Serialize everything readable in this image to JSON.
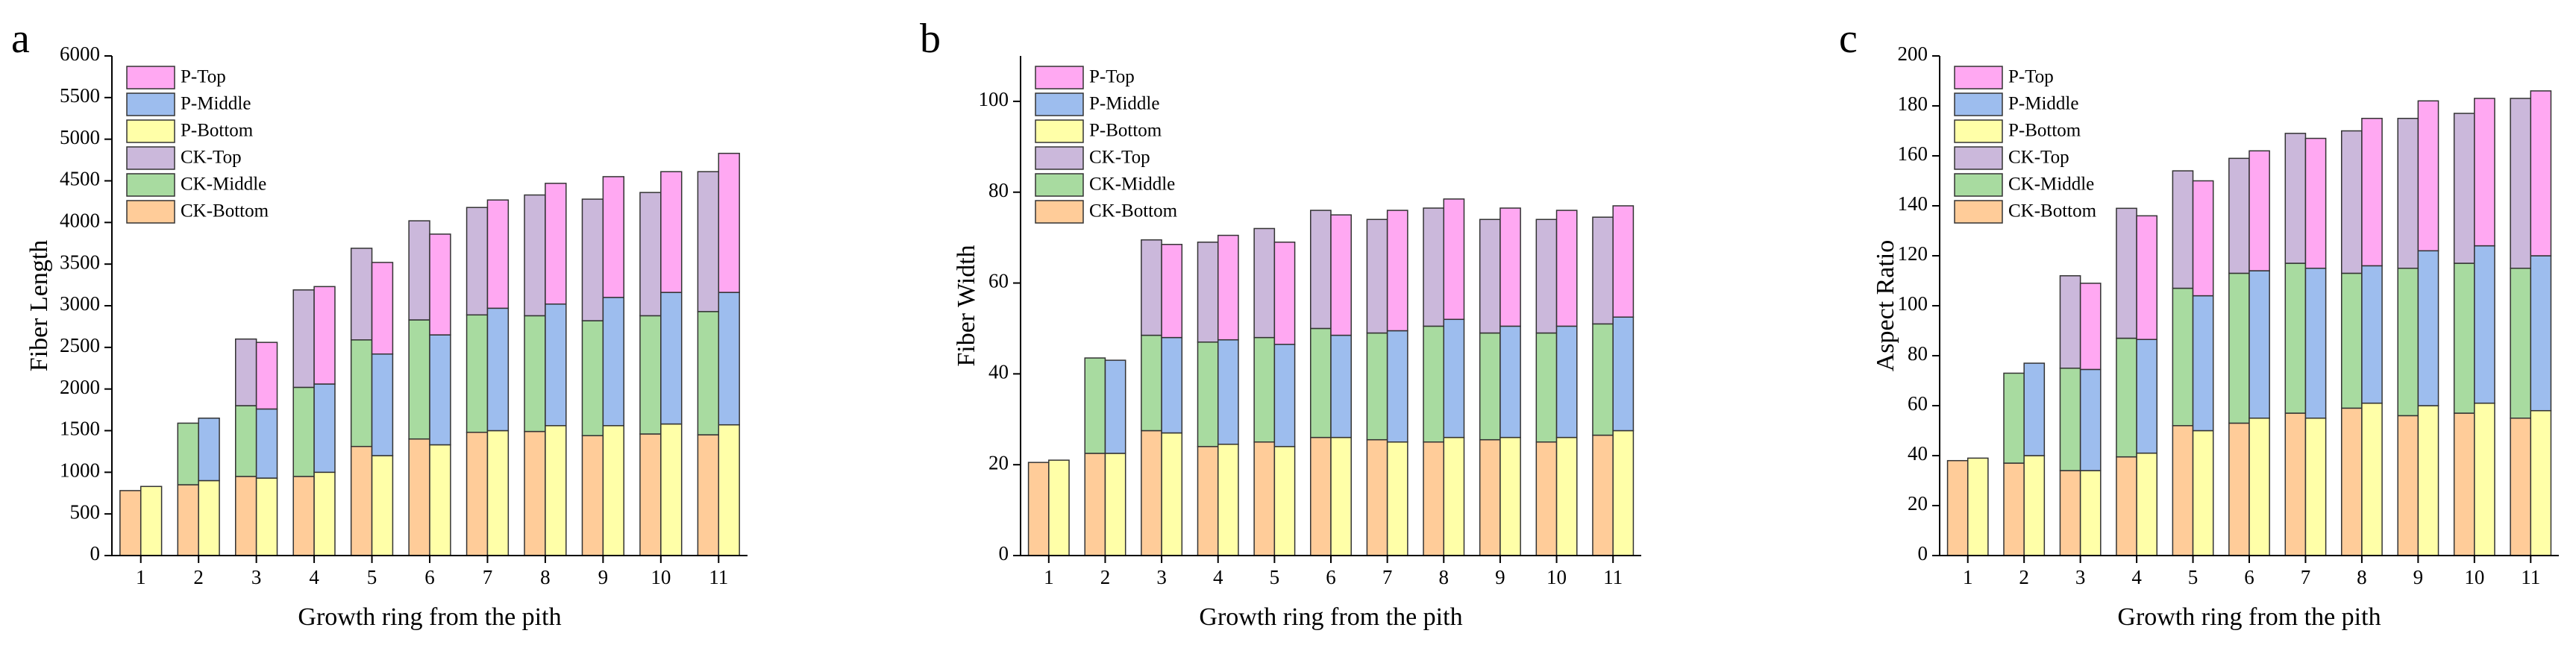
{
  "chart_data": [
    {
      "type": "stacked_bar",
      "label": "a",
      "xlabel": "Growth ring from the pith",
      "ylabel": "Fiber Length",
      "categories": [
        "1",
        "2",
        "3",
        "4",
        "5",
        "6",
        "7",
        "8",
        "9",
        "10",
        "11"
      ],
      "ylim": [
        0,
        6000
      ],
      "yticks": [
        0,
        500,
        1000,
        1500,
        2000,
        2500,
        3000,
        3500,
        4000,
        4500,
        5000,
        5500,
        6000
      ],
      "series": [
        {
          "name": "CK-Bottom",
          "stack": "CK",
          "color": "#FFCC99",
          "values": [
            780,
            850,
            950,
            950,
            1310,
            1400,
            1480,
            1490,
            1440,
            1460,
            1450
          ]
        },
        {
          "name": "CK-Middle",
          "stack": "CK",
          "color": "#A8DBA0",
          "values": [
            null,
            740,
            850,
            1070,
            1280,
            1430,
            1410,
            1390,
            1380,
            1420,
            1480
          ]
        },
        {
          "name": "CK-Top",
          "stack": "CK",
          "color": "#CBB8DB",
          "values": [
            null,
            null,
            800,
            1170,
            1100,
            1190,
            1290,
            1450,
            1460,
            1480,
            1680
          ]
        },
        {
          "name": "P-Bottom",
          "stack": "P",
          "color": "#FFFFA8",
          "values": [
            830,
            900,
            930,
            1000,
            1200,
            1330,
            1500,
            1560,
            1560,
            1580,
            1570
          ]
        },
        {
          "name": "P-Middle",
          "stack": "P",
          "color": "#9DBDEE",
          "values": [
            null,
            750,
            830,
            1060,
            1220,
            1320,
            1470,
            1460,
            1540,
            1580,
            1590
          ]
        },
        {
          "name": "P-Top",
          "stack": "P",
          "color": "#FFA8F2",
          "values": [
            null,
            null,
            800,
            1170,
            1100,
            1210,
            1300,
            1450,
            1450,
            1450,
            1670
          ]
        }
      ]
    },
    {
      "type": "stacked_bar",
      "label": "b",
      "xlabel": "Growth ring from the pith",
      "ylabel": "Fiber Width",
      "categories": [
        "1",
        "2",
        "3",
        "4",
        "5",
        "6",
        "7",
        "8",
        "9",
        "10",
        "11"
      ],
      "ylim": [
        0,
        110
      ],
      "yticks": [
        0,
        20,
        40,
        60,
        80,
        100
      ],
      "series": [
        {
          "name": "CK-Bottom",
          "stack": "CK",
          "color": "#FFCC99",
          "values": [
            20.5,
            22.5,
            27.5,
            24,
            25,
            26,
            25.5,
            25,
            25.5,
            25,
            26.5
          ]
        },
        {
          "name": "CK-Middle",
          "stack": "CK",
          "color": "#A8DBA0",
          "values": [
            null,
            21,
            21,
            23,
            23,
            24,
            23.5,
            25.5,
            23.5,
            24,
            24.5
          ]
        },
        {
          "name": "CK-Top",
          "stack": "CK",
          "color": "#CBB8DB",
          "values": [
            null,
            null,
            21,
            22,
            24,
            26,
            25,
            26,
            25,
            25,
            23.5
          ]
        },
        {
          "name": "P-Bottom",
          "stack": "P",
          "color": "#FFFFA8",
          "values": [
            21,
            22.5,
            27,
            24.5,
            24,
            26,
            25,
            26,
            26,
            26,
            27.5
          ]
        },
        {
          "name": "P-Middle",
          "stack": "P",
          "color": "#9DBDEE",
          "values": [
            null,
            20.5,
            21,
            23,
            22.5,
            22.5,
            24.5,
            26,
            24.5,
            24.5,
            25
          ]
        },
        {
          "name": "P-Top",
          "stack": "P",
          "color": "#FFA8F2",
          "values": [
            null,
            null,
            20.5,
            23,
            22.5,
            26.5,
            26.5,
            26.5,
            26,
            25.5,
            24.5
          ]
        }
      ]
    },
    {
      "type": "stacked_bar",
      "label": "c",
      "xlabel": "Growth ring from the pith",
      "ylabel": "Aspect Ratio",
      "categories": [
        "1",
        "2",
        "3",
        "4",
        "5",
        "6",
        "7",
        "8",
        "9",
        "10",
        "11"
      ],
      "ylim": [
        0,
        200
      ],
      "yticks": [
        0,
        20,
        40,
        60,
        80,
        100,
        120,
        140,
        160,
        180,
        200
      ],
      "series": [
        {
          "name": "CK-Bottom",
          "stack": "CK",
          "color": "#FFCC99",
          "values": [
            38,
            37,
            34,
            39.5,
            52,
            53,
            57,
            59,
            56,
            57,
            55
          ]
        },
        {
          "name": "CK-Middle",
          "stack": "CK",
          "color": "#A8DBA0",
          "values": [
            null,
            36,
            41,
            47.5,
            55,
            60,
            60,
            54,
            59,
            60,
            60
          ]
        },
        {
          "name": "CK-Top",
          "stack": "CK",
          "color": "#CBB8DB",
          "values": [
            null,
            null,
            37,
            52,
            47,
            46,
            52,
            57,
            60,
            60,
            68
          ]
        },
        {
          "name": "P-Bottom",
          "stack": "P",
          "color": "#FFFFA8",
          "values": [
            39,
            40,
            34,
            41,
            50,
            55,
            55,
            61,
            60,
            61,
            58
          ]
        },
        {
          "name": "P-Middle",
          "stack": "P",
          "color": "#9DBDEE",
          "values": [
            null,
            37,
            40.5,
            45.5,
            54,
            59,
            60,
            55,
            62,
            63,
            62
          ]
        },
        {
          "name": "P-Top",
          "stack": "P",
          "color": "#FFA8F2",
          "values": [
            null,
            null,
            34.5,
            49.5,
            46,
            48,
            52,
            59,
            60,
            59,
            66
          ]
        }
      ]
    }
  ]
}
